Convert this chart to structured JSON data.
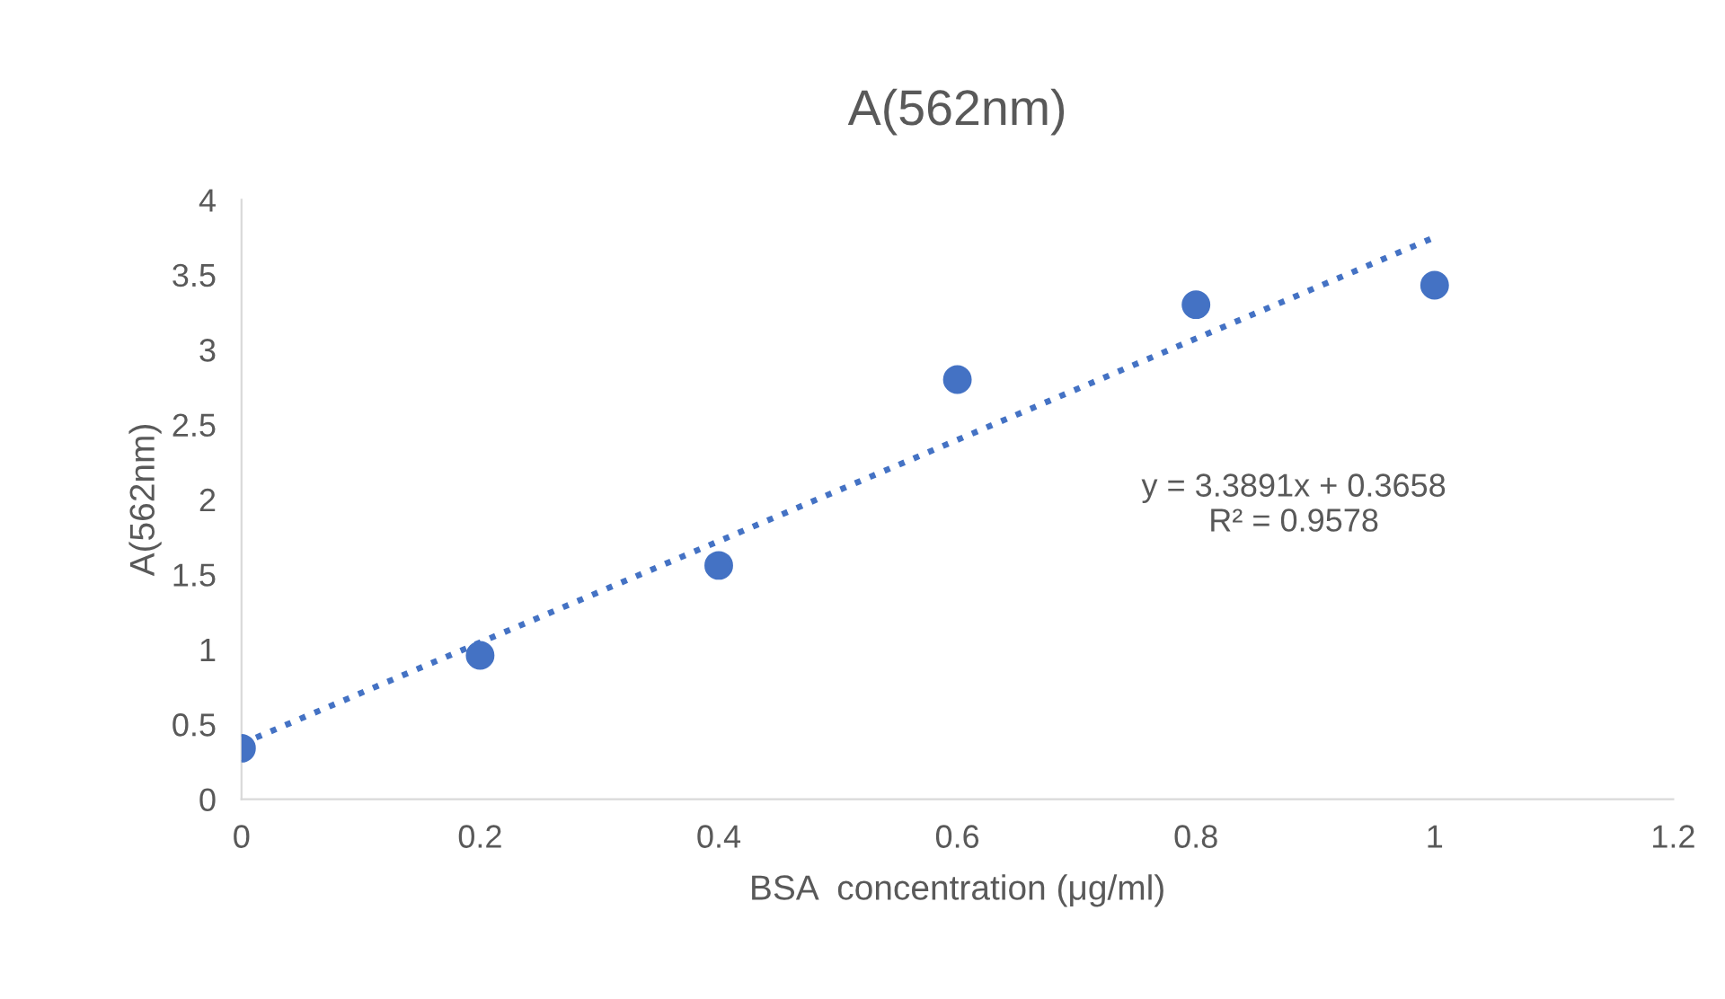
{
  "chart_data": {
    "type": "scatter",
    "title": "A(562nm)",
    "xlabel": "BSA  concentration (μg/ml)",
    "ylabel": "A(562nm)",
    "x": [
      0,
      0.2,
      0.4,
      0.6,
      0.8,
      1.0
    ],
    "series": [
      {
        "color": "#4472c4",
        "marker": "circle",
        "values": [
          0.34,
          0.96,
          1.56,
          2.8,
          3.3,
          3.43
        ]
      },
      {
        "type": "line",
        "color": "#4472c4",
        "line_style": "dotted",
        "marker": "none",
        "x": [
          0,
          1.0
        ],
        "values": [
          0.37,
          3.75
        ]
      }
    ],
    "annotations": [
      "y = 3.3891x + 0.3658\nR² = 0.9578"
    ],
    "xlim": [
      0,
      1.2
    ],
    "xticks": [
      0,
      0.2,
      0.4,
      0.6,
      0.8,
      1,
      1.2
    ],
    "ylim": [
      0,
      4
    ],
    "yticks": [
      0,
      0.5,
      1,
      1.5,
      2,
      2.5,
      3,
      3.5,
      4
    ],
    "grid": false,
    "legend": false
  }
}
